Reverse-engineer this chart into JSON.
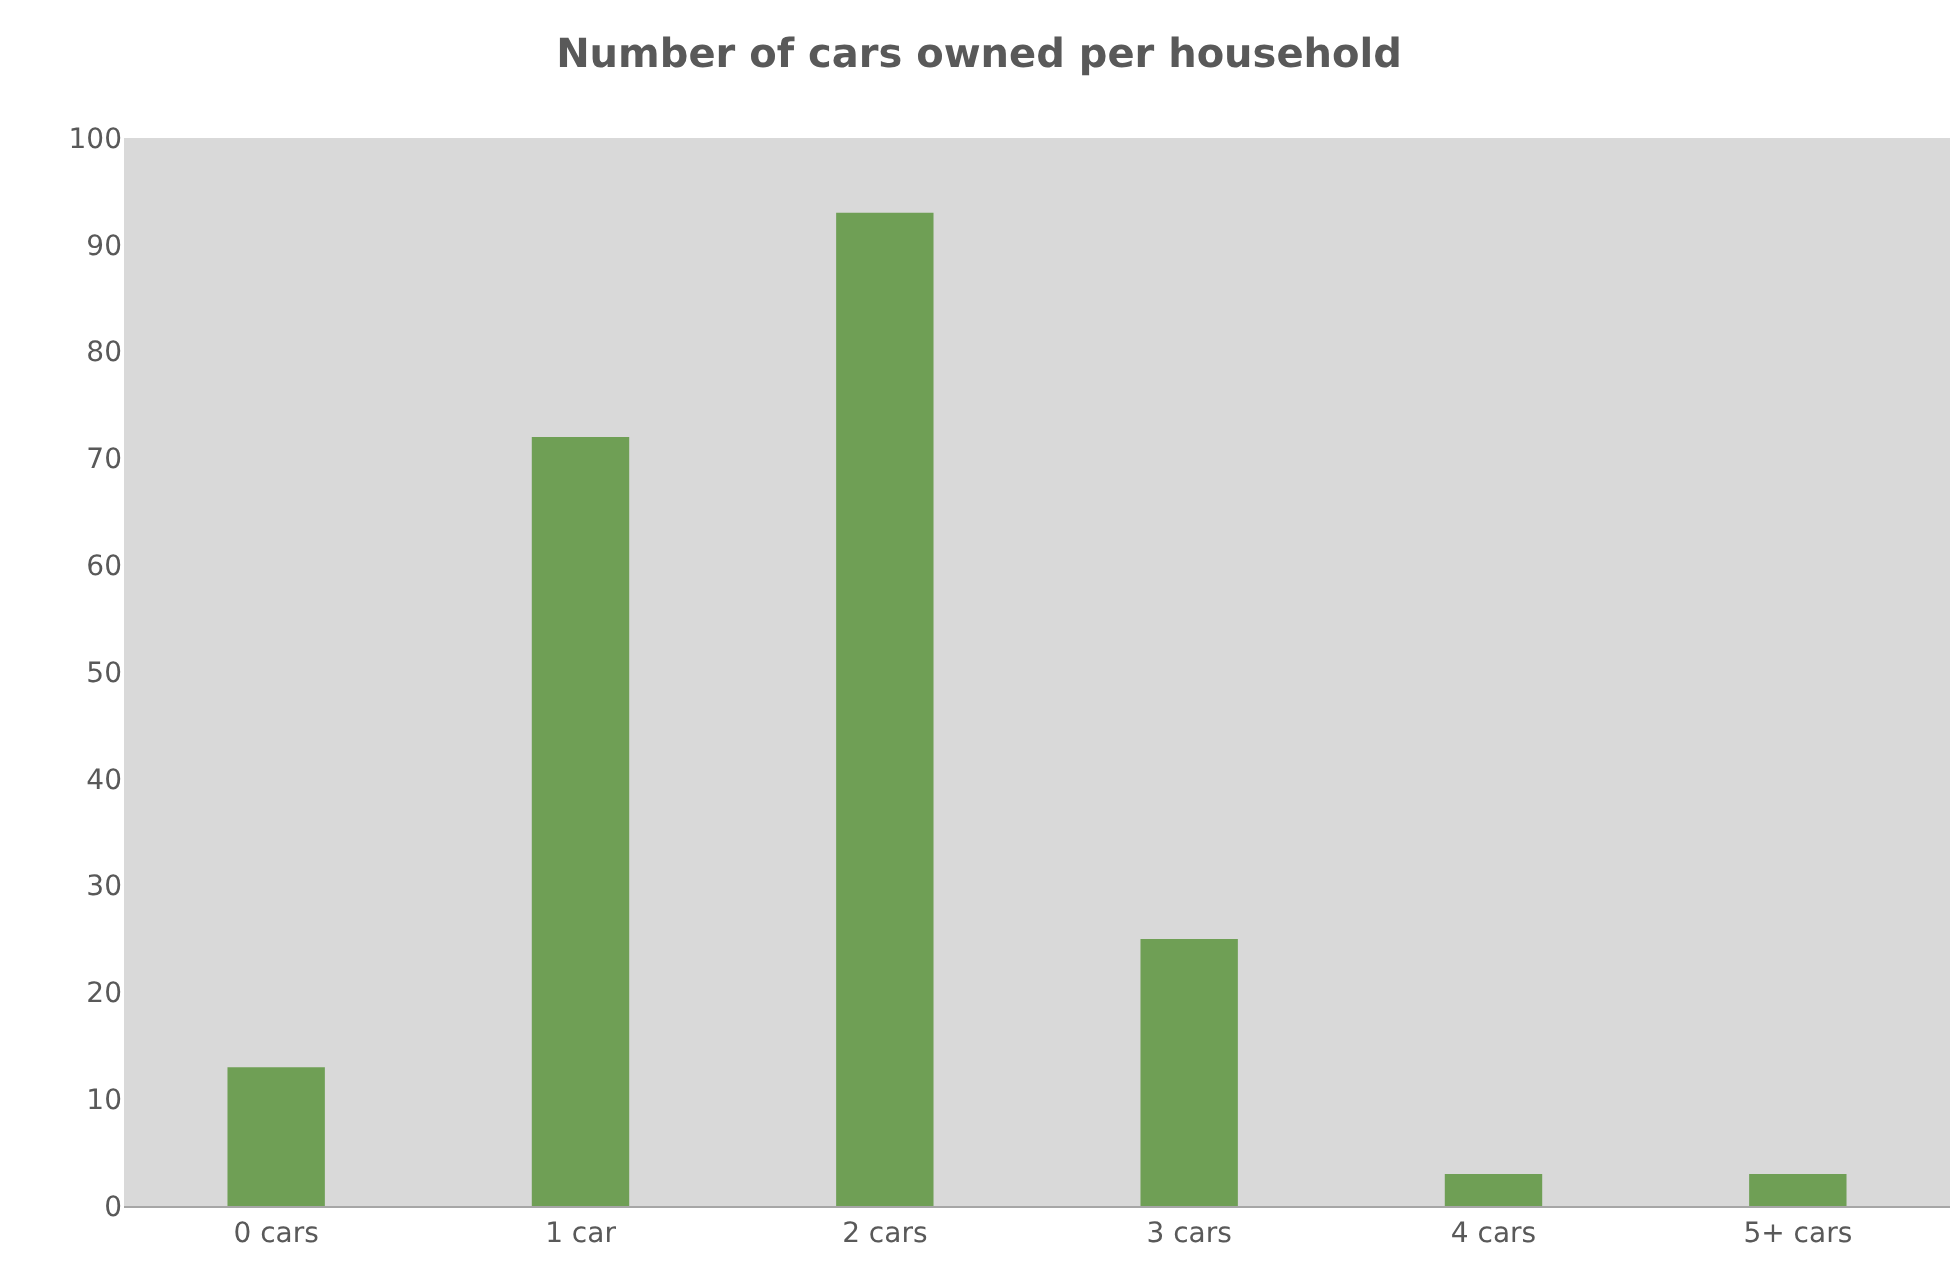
{
  "chart_data": {
    "type": "bar",
    "title": "Number of cars owned per household",
    "categories": [
      "0 cars",
      "1 car",
      "2 cars",
      "3 cars",
      "4 cars",
      "5+ cars"
    ],
    "values": [
      13,
      72,
      93,
      25,
      3,
      3
    ],
    "color": "#6f9f55",
    "ylim": [
      0,
      100
    ],
    "yticks": [
      0,
      10,
      20,
      30,
      40,
      50,
      60,
      70,
      80,
      90,
      100
    ],
    "grid": false,
    "legend": false
  }
}
